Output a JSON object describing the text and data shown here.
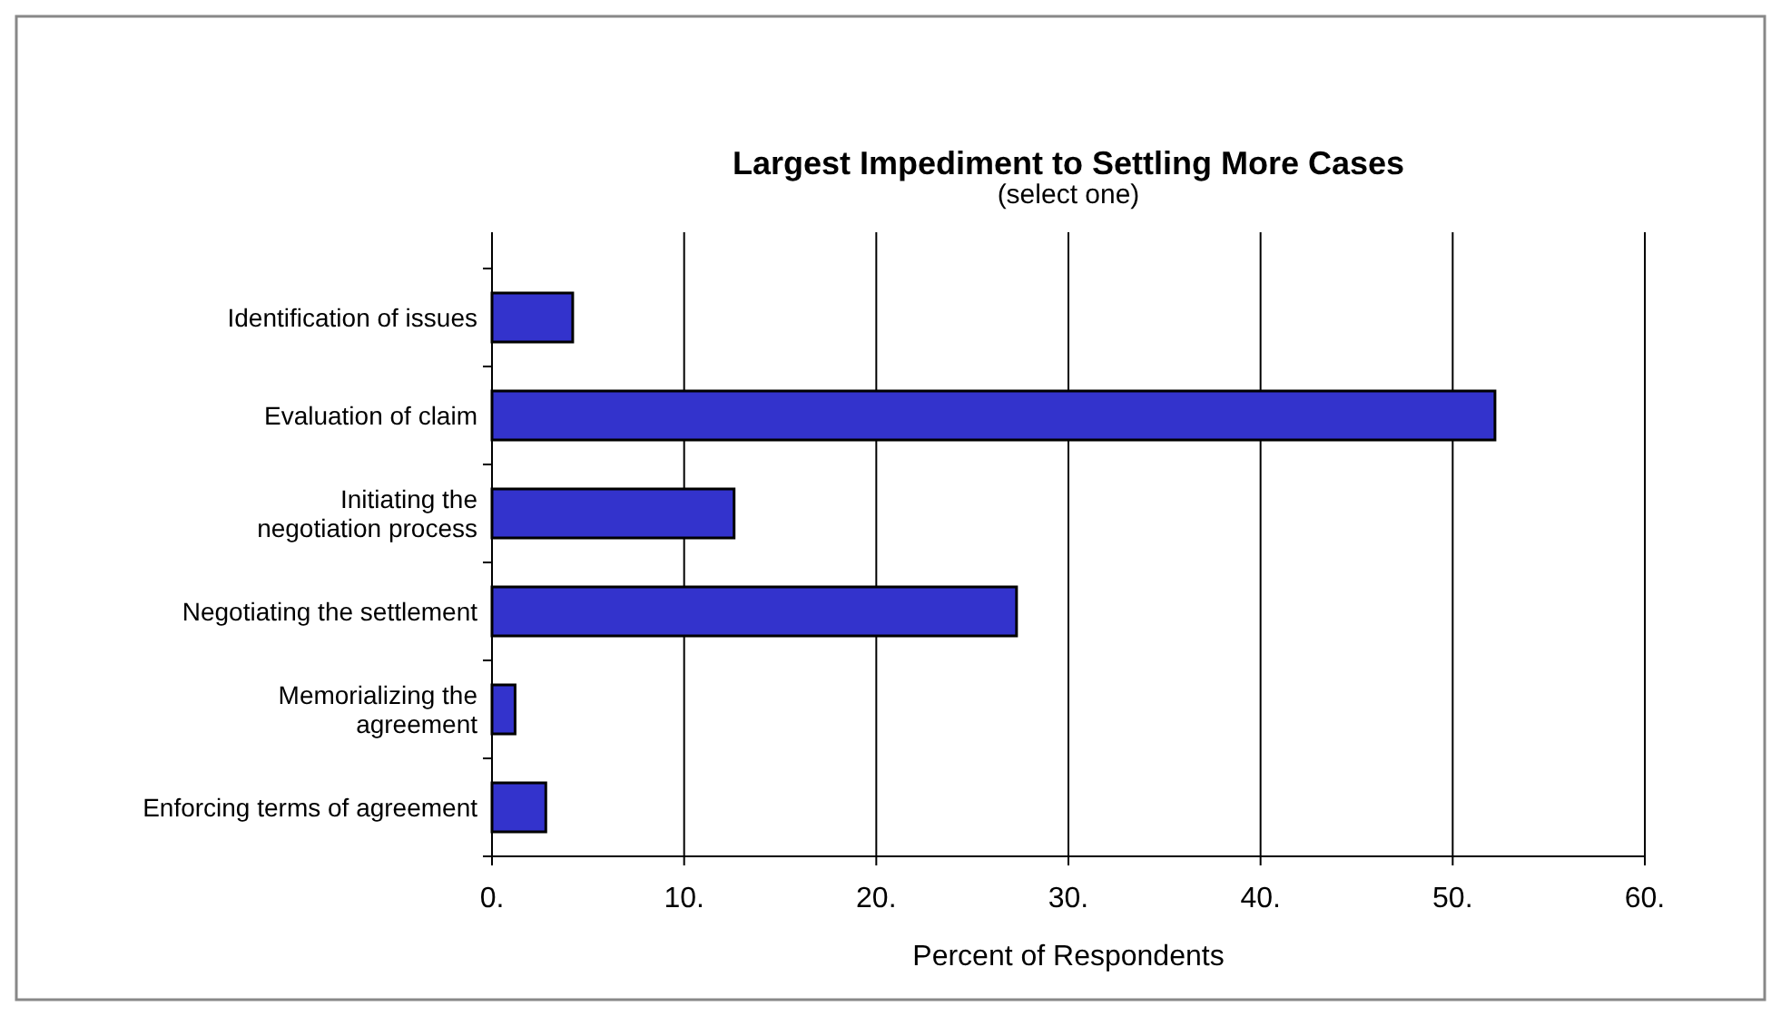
{
  "chart_data": {
    "type": "bar",
    "orientation": "horizontal",
    "title": "Largest Impediment to Settling More Cases",
    "subtitle": "(select one)",
    "xlabel": "Percent of Respondents",
    "categories": [
      "Identification of issues",
      "Evaluation of claim",
      "Initiating the\nnegotiation process",
      "Negotiating the settlement",
      "Memorializing the\nagreement",
      "Enforcing terms of agreement"
    ],
    "values": [
      4.2,
      52.2,
      12.6,
      27.3,
      1.2,
      2.8
    ],
    "color": "#3333cc",
    "xlim": [
      0,
      60
    ],
    "xticks": [
      {
        "value": 0,
        "label": "0."
      },
      {
        "value": 10,
        "label": "10."
      },
      {
        "value": 20,
        "label": "20."
      },
      {
        "value": 30,
        "label": "30."
      },
      {
        "value": 40,
        "label": "40."
      },
      {
        "value": 50,
        "label": "50."
      },
      {
        "value": 60,
        "label": "60."
      }
    ],
    "grid": "x"
  }
}
